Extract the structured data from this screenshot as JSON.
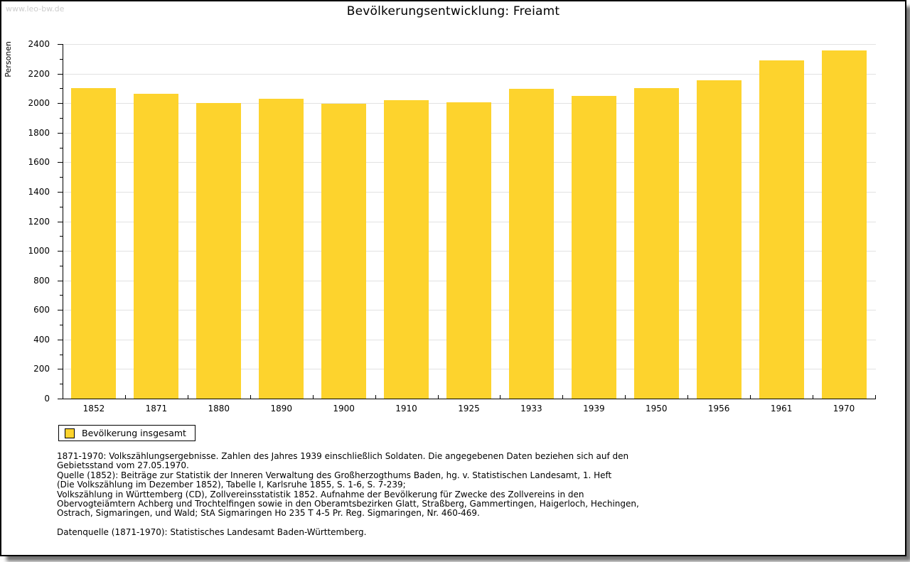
{
  "watermark": "www.leo-bw.de",
  "title": "Bevölkerungsentwicklung: Freiamt",
  "chart_data": {
    "type": "bar",
    "title": "Bevölkerungsentwicklung: Freiamt",
    "xlabel": "",
    "ylabel": "Personen",
    "ylim": [
      0,
      2400
    ],
    "ytick_step": 200,
    "yminor_step": 100,
    "grid": true,
    "legend_position": "bottom-left",
    "categories": [
      "1852",
      "1871",
      "1880",
      "1890",
      "1900",
      "1910",
      "1925",
      "1933",
      "1939",
      "1950",
      "1956",
      "1961",
      "1970"
    ],
    "series": [
      {
        "name": "Bevölkerung insgesamt",
        "values": [
          2100,
          2065,
          2000,
          2030,
          1995,
          2020,
          2005,
          2095,
          2050,
          2100,
          2155,
          2290,
          2355
        ]
      }
    ]
  },
  "legend": {
    "label": "Bevölkerung insgesamt"
  },
  "footer": {
    "lines": [
      "1871-1970: Volkszählungsergebnisse. Zahlen des Jahres 1939 einschließlich Soldaten. Die angegebenen Daten beziehen sich auf den",
      "Gebietsstand vom 27.05.1970.",
      "Quelle (1852): Beiträge zur Statistik der Inneren Verwaltung des Großherzogthums Baden, hg. v. Statistischen Landesamt, 1. Heft",
      "(Die Volkszählung im Dezember 1852), Tabelle I, Karlsruhe 1855, S. 1-6, S. 7-239;",
      "Volkszählung in Württemberg (CD), Zollvereinsstatistik 1852. Aufnahme der Bevölkerung für Zwecke des Zollvereins in den",
      "Obervogteiämtern Achberg und Trochtelfingen sowie in den Oberamtsbezirken Glatt, Straßberg, Gammertingen, Haigerloch, Hechingen,",
      "Ostrach, Sigmaringen, und Wald; StA Sigmaringen Ho 235 T 4-5 Pr. Reg. Sigmaringen, Nr. 460-469.",
      "",
      "Datenquelle (1871-1970): Statistisches Landesamt Baden-Württemberg."
    ]
  },
  "colors": {
    "bar": "#FDD32D",
    "grid": "#E2E2E2",
    "axis": "#000000",
    "watermark": "#CCCCCC",
    "background": "#FFFFFF"
  }
}
